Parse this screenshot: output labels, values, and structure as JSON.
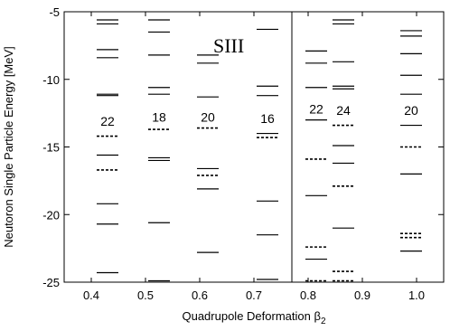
{
  "chart_data": {
    "type": "scatter",
    "title": "SIII",
    "xlabel": "Quadrupole Deformation β",
    "xlabel_sub": "2",
    "ylabel": "Neutoron Single Particle Energy [MeV]",
    "xlim": [
      0.35,
      1.05
    ],
    "ylim": [
      -25,
      -5
    ],
    "x_ticks": [
      0.4,
      0.5,
      0.6,
      0.7,
      0.8,
      0.9,
      1.0
    ],
    "x_tick_labels": [
      "0.4",
      "0.5",
      "0.6",
      "0.7",
      "0.8",
      "0.9",
      "1.0"
    ],
    "y_ticks": [
      -25,
      -20,
      -15,
      -10,
      -5
    ],
    "y_tick_labels": [
      "-25",
      "-20",
      "-15",
      "-10",
      "-5"
    ],
    "divider_x": 0.77,
    "columns": [
      {
        "x": 0.43,
        "number": "22",
        "number_y": -13.1,
        "occupied": [
          -5.6,
          -5.9,
          -7.8,
          -8.4,
          -11.1,
          -11.2,
          -15.6,
          -19.2,
          -20.7,
          -24.3
        ],
        "empty": [
          -14.2,
          -16.7
        ]
      },
      {
        "x": 0.525,
        "number": "18",
        "number_y": -12.8,
        "occupied": [
          -5.6,
          -6.5,
          -8.2,
          -10.6,
          -11.1,
          -15.8,
          -16.0,
          -20.6,
          -24.9
        ],
        "empty": [
          -13.7
        ]
      },
      {
        "x": 0.615,
        "number": "20",
        "number_y": -12.8,
        "occupied": [
          -8.2,
          -8.8,
          -11.3,
          -16.6,
          -18.1,
          -22.8
        ],
        "empty": [
          -13.6,
          -17.1
        ]
      },
      {
        "x": 0.725,
        "number": "16",
        "number_y": -12.9,
        "occupied": [
          -6.3,
          -10.5,
          -11.2,
          -14.0,
          -19.0,
          -21.5,
          -24.8
        ],
        "empty": [
          -14.3
        ]
      },
      {
        "x": 0.815,
        "number": "22",
        "number_y": -12.2,
        "occupied": [
          -7.9,
          -8.8,
          -10.6,
          -13.0,
          -18.6,
          -23.3
        ],
        "empty": [
          -15.9,
          -22.4,
          -24.9
        ]
      },
      {
        "x": 0.865,
        "number": "24",
        "number_y": -12.3,
        "occupied": [
          -5.6,
          -5.9,
          -8.7,
          -10.5,
          -10.7,
          -14.9,
          -16.2,
          -21.0
        ],
        "empty": [
          -13.4,
          -17.9,
          -24.2,
          -24.9
        ]
      },
      {
        "x": 0.99,
        "number": "20",
        "number_y": -12.3,
        "occupied": [
          -6.4,
          -6.8,
          -8.1,
          -9.7,
          -11.1,
          -13.4,
          -17.0,
          -22.7
        ],
        "empty": [
          -15.0,
          -21.4,
          -21.7
        ]
      }
    ]
  }
}
